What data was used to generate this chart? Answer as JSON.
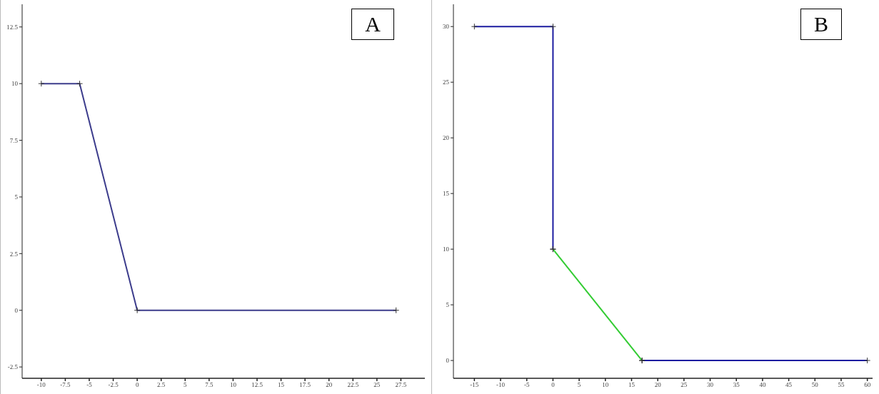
{
  "chart_data": [
    {
      "type": "line",
      "annotations": [
        "A"
      ],
      "marker": "cross",
      "line_style": "solid",
      "xlim": [
        -12,
        30
      ],
      "xticks": [
        -10,
        -7.5,
        -5,
        -2.5,
        0,
        2.5,
        5,
        7.5,
        10,
        12.5,
        15,
        17.5,
        20,
        22.5,
        25,
        27.5
      ],
      "ylim": [
        -3,
        13.5
      ],
      "yticks": [
        -2.5,
        0,
        2.5,
        5,
        7.5,
        10,
        12.5
      ],
      "series": [
        {
          "color": "#3c3c8c",
          "x": [
            -10,
            -6,
            0,
            27
          ],
          "values": [
            10,
            10,
            0,
            0
          ]
        }
      ]
    },
    {
      "type": "line",
      "annotations": [
        "B"
      ],
      "marker": "cross",
      "line_style": "solid",
      "xlim": [
        -19,
        61
      ],
      "xticks": [
        -15,
        -10,
        -5,
        0,
        5,
        10,
        15,
        20,
        25,
        30,
        35,
        40,
        45,
        50,
        55,
        60
      ],
      "ylim": [
        -1.6,
        32
      ],
      "yticks": [
        0,
        5,
        10,
        15,
        20,
        25,
        30
      ],
      "series": [
        {
          "color": "#1c1ca0",
          "x": [
            -15,
            0,
            0
          ],
          "values": [
            30,
            30,
            10
          ]
        },
        {
          "color": "#33cc33",
          "x": [
            0,
            17
          ],
          "values": [
            10,
            0
          ]
        },
        {
          "color": "#1c1ca0",
          "x": [
            17,
            60
          ],
          "values": [
            0,
            0
          ]
        }
      ]
    }
  ]
}
